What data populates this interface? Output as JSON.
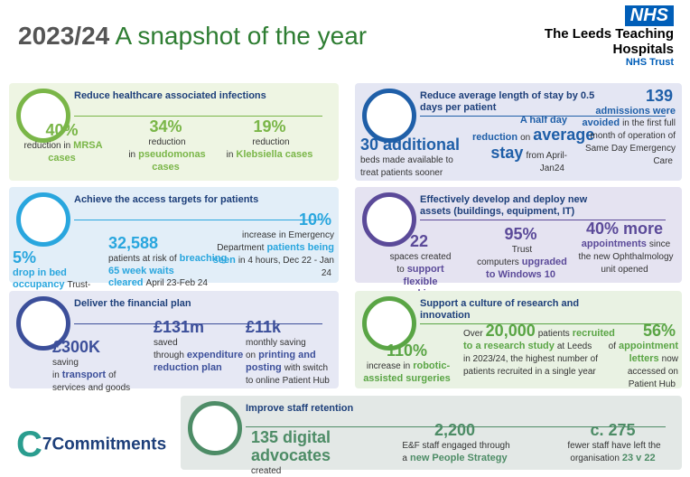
{
  "header": {
    "year": "2023/24",
    "title": "A snapshot of the year",
    "logo": "NHS",
    "organisation": "The Leeds Teaching Hospitals",
    "trust": "NHS Trust"
  },
  "footer_logo": "7Commitments",
  "panels": [
    {
      "heading": "Reduce healthcare associated infections",
      "stats": [
        [
          "40%",
          "reduction in",
          "MRSA cases"
        ],
        [
          "34%",
          "reduction in",
          "pseudomonas cases"
        ],
        [
          "19%",
          "reduction in",
          "Klebsiella cases"
        ]
      ]
    },
    {
      "heading": "Achieve the access targets for patients",
      "stats": [
        [
          "5%",
          "drop in bed occupancy",
          "Trust-wide"
        ],
        [
          "32,588",
          "patients at risk of",
          "breaching 65 week waits cleared",
          "April 23-Feb 24"
        ],
        [
          "10%",
          "increase",
          "in Emergency Department",
          "patients being seen",
          "in 4 hours, Dec 22 - Jan 24"
        ]
      ]
    },
    {
      "heading": "Deliver the financial plan",
      "stats": [
        [
          "£300K",
          "saving in",
          "transport",
          "of services and goods"
        ],
        [
          "£131m",
          "saved through",
          "expenditure reduction plan"
        ],
        [
          "£11k",
          "monthly saving on",
          "printing and posting",
          "with switch to online Patient Hub"
        ]
      ]
    },
    {
      "heading": "Reduce average length of stay by 0.5 days per patient",
      "stats": [
        [
          "30 additional",
          "beds made available to treat patients sooner"
        ],
        [
          "A half day reduction",
          "on",
          "average stay",
          "from April-Jan24"
        ],
        [
          "139",
          "admissions were avoided",
          "in the first full month of operation of Same Day Emergency Care"
        ]
      ]
    },
    {
      "heading": "Effectively develop and deploy new assets (buildings, equipment, IT)",
      "stats": [
        [
          "22",
          "spaces created to",
          "support flexible working"
        ],
        [
          "95%",
          "Trust computers",
          "upgraded to Windows 10"
        ],
        [
          "40% more",
          "appointments",
          "since the new Ophthalmology unit opened"
        ]
      ]
    },
    {
      "heading": "Support a culture of research and innovation",
      "stats": [
        [
          "110%",
          "increase in",
          "robotic-assisted surgeries"
        ],
        [
          "Over",
          "20,000",
          "patients",
          "recruited to a research study",
          "at Leeds in 2023/24, the highest number of patients recruited in a single year"
        ],
        [
          "56%",
          "of",
          "appointment letters",
          "now accessed on Patient Hub"
        ]
      ]
    },
    {
      "heading": "Improve staff retention",
      "stats": [
        [
          "135 digital advocates",
          "created"
        ],
        [
          "2,200",
          "E&F staff engaged through a",
          "new People Strategy"
        ],
        [
          "c. 275",
          "fewer staff have left the organisation",
          "23 v 22"
        ]
      ]
    }
  ]
}
